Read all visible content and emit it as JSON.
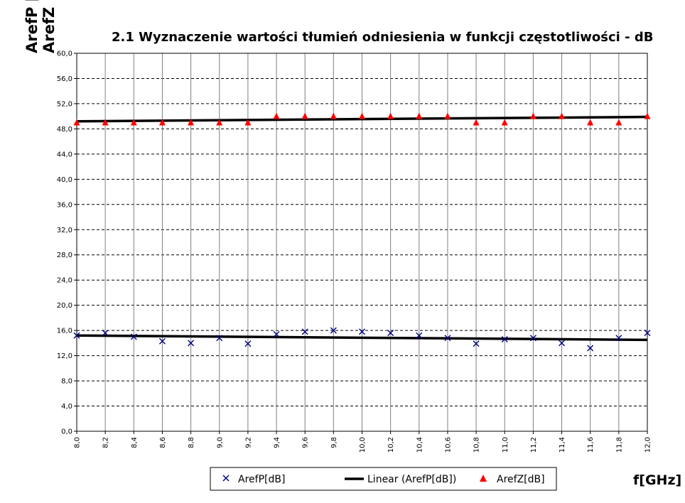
{
  "chart_data": {
    "type": "scatter",
    "title": "2.1 Wyznaczenie wartości tłumień odniesienia w funkcji częstotliwości - dB",
    "ylabel_lines": [
      "ArefP [dB]",
      "ArefZ"
    ],
    "xlabel": "f[GHz]",
    "xlim": [
      8.0,
      12.0
    ],
    "ylim": [
      0.0,
      60.0
    ],
    "x_ticks": [
      "8,0",
      "8,2",
      "8,4",
      "8,6",
      "8,8",
      "9,0",
      "9,2",
      "9,4",
      "9,6",
      "9,8",
      "10,0",
      "10,2",
      "10,4",
      "10,6",
      "10,8",
      "11,0",
      "11,2",
      "11,4",
      "11,6",
      "11,8",
      "12,0"
    ],
    "y_ticks": [
      "0,0",
      "4,0",
      "8,0",
      "12,0",
      "16,0",
      "20,0",
      "24,0",
      "28,0",
      "32,0",
      "36,0",
      "40,0",
      "44,0",
      "48,0",
      "52,0",
      "56,0",
      "60,0"
    ],
    "grid": {
      "vertical": "solid",
      "horizontal": "dashed"
    },
    "x": [
      8.0,
      8.2,
      8.4,
      8.6,
      8.8,
      9.0,
      9.2,
      9.4,
      9.6,
      9.8,
      10.0,
      10.2,
      10.4,
      10.6,
      10.8,
      11.0,
      11.2,
      11.4,
      11.6,
      11.8,
      12.0
    ],
    "series": [
      {
        "name": "ArefP[dB]",
        "marker": "x",
        "color": "#000080",
        "values": [
          15.2,
          15.6,
          15.0,
          14.3,
          14.0,
          14.8,
          13.9,
          15.4,
          15.8,
          16.0,
          15.8,
          15.6,
          15.2,
          14.8,
          13.9,
          14.6,
          14.8,
          14.0,
          13.2,
          14.8,
          15.6
        ]
      },
      {
        "name": "Linear (ArefP[dB])",
        "type": "line",
        "color": "#000000",
        "x": [
          8.0,
          12.0
        ],
        "values": [
          15.2,
          14.5
        ]
      },
      {
        "name": "ArefZ[dB]",
        "marker": "triangle",
        "color": "#ff0000",
        "values": [
          49.0,
          49.0,
          49.0,
          49.0,
          49.0,
          49.0,
          49.0,
          50.0,
          50.0,
          50.0,
          50.0,
          50.0,
          50.0,
          50.0,
          49.0,
          49.0,
          50.0,
          50.0,
          49.0,
          49.0,
          50.0
        ]
      },
      {
        "name": "Linear (ArefZ[dB])",
        "type": "line",
        "color": "#000000",
        "x": [
          8.0,
          12.0
        ],
        "values": [
          49.2,
          49.9
        ]
      }
    ],
    "legend": {
      "placement": "bottom",
      "entries": [
        "ArefP[dB]",
        "Linear (ArefP[dB])",
        "ArefZ[dB]"
      ]
    }
  }
}
